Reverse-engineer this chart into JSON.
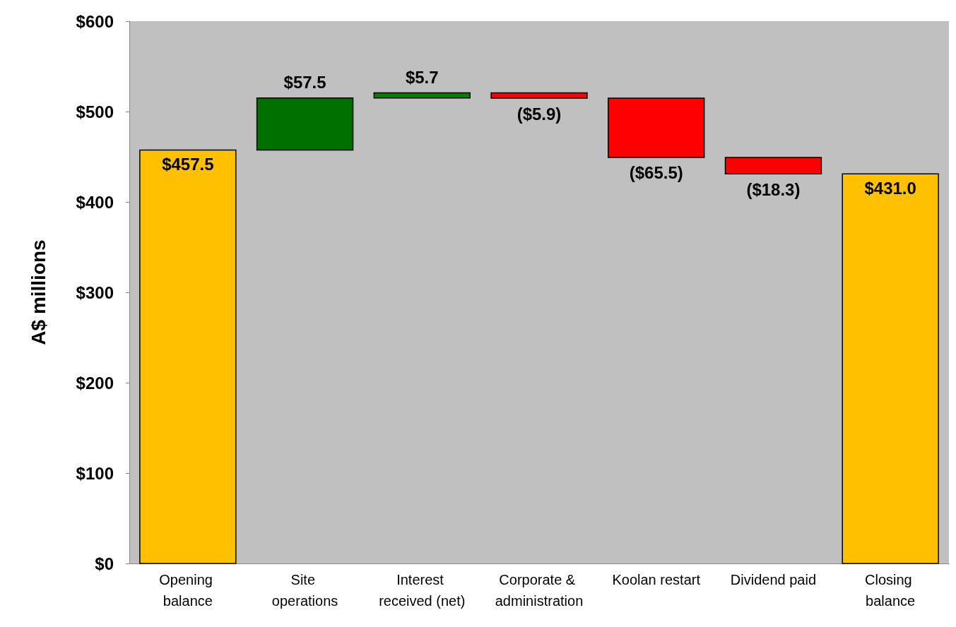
{
  "chart_data": {
    "type": "bar",
    "ylabel": "A$ millions",
    "categories": [
      "Opening balance",
      "Site operations",
      "Interest received (net)",
      "Corporate & administration",
      "Koolan restart",
      "Dividend paid",
      "Closing balance"
    ],
    "values": [
      457.5,
      57.5,
      5.7,
      -5.9,
      -65.5,
      -18.3,
      431.0
    ],
    "base": [
      0,
      457.5,
      515.0,
      520.7,
      514.8,
      449.3,
      0
    ],
    "colors": [
      "#ffc000",
      "#007000",
      "#008000",
      "#ff0000",
      "#ff0000",
      "#ff0000",
      "#ffc000"
    ],
    "value_labels": [
      "$457.5",
      "$57.5",
      "$5.7",
      "($5.9)",
      "($65.5)",
      "($18.3)",
      "$431.0"
    ],
    "ylim": [
      0,
      600
    ],
    "yticks": [
      {
        "value": 0,
        "label": "$0"
      },
      {
        "value": 100,
        "label": "$100"
      },
      {
        "value": 200,
        "label": "$200"
      },
      {
        "value": 300,
        "label": "$300"
      },
      {
        "value": 400,
        "label": "$400"
      },
      {
        "value": 500,
        "label": "$500"
      },
      {
        "value": 600,
        "label": "$600"
      }
    ],
    "grid": false
  }
}
